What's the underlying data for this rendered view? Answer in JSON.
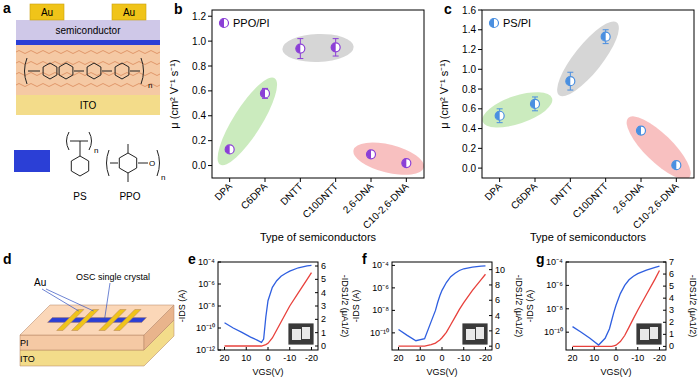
{
  "chart_data": [
    {
      "type": "scatter",
      "title": "b",
      "xlabel": "Type of semiconductors",
      "ylabel": "μ (cm² V⁻¹ s⁻¹)",
      "categories": [
        "DPA",
        "C6DPA",
        "DNTT",
        "C10DNTT",
        "2,6-DNA",
        "C10-2,6-DNA"
      ],
      "series": [
        {
          "name": "PPO/PI",
          "color": "#8b3fd6",
          "marker": "half-circle",
          "values": [
            0.13,
            0.58,
            0.94,
            0.95,
            0.09,
            0.02
          ],
          "errors": [
            0.02,
            0.04,
            0.08,
            0.07,
            0.02,
            0.01
          ]
        }
      ],
      "ylim": [
        -0.1,
        1.25
      ],
      "yticks": [
        {
          "value": 0,
          "label": "0.0"
        },
        {
          "value": 0.2,
          "label": "0.2"
        },
        {
          "value": 0.4,
          "label": "0.4"
        },
        {
          "value": 0.6,
          "label": "0.6"
        },
        {
          "value": 0.8,
          "label": "0.8"
        },
        {
          "value": 1,
          "label": "1.0"
        },
        {
          "value": 1.2,
          "label": "1.2"
        }
      ],
      "legend": "upper left",
      "grid": false
    },
    {
      "type": "scatter",
      "title": "c",
      "xlabel": "Type of semiconductors",
      "ylabel": "μ (cm² V⁻¹ s⁻¹)",
      "categories": [
        "DPA",
        "C6DPA",
        "DNTT",
        "C10DNTT",
        "2,6-DNA",
        "C10-2,6-DNA"
      ],
      "series": [
        {
          "name": "PS/PI",
          "color": "#4a8fe0",
          "marker": "half-circle",
          "values": [
            0.53,
            0.65,
            0.88,
            1.33,
            0.38,
            0.03
          ],
          "errors": [
            0.07,
            0.07,
            0.09,
            0.07,
            0.04,
            0.02
          ]
        }
      ],
      "ylim": [
        -0.1,
        1.6
      ],
      "yticks": [
        {
          "value": 0,
          "label": "0.0"
        },
        {
          "value": 0.2,
          "label": "0.2"
        },
        {
          "value": 0.4,
          "label": "0.4"
        },
        {
          "value": 0.6,
          "label": "0.6"
        },
        {
          "value": 0.8,
          "label": "0.8"
        },
        {
          "value": 1,
          "label": "1.0"
        },
        {
          "value": 1.2,
          "label": "1.2"
        },
        {
          "value": 1.4,
          "label": "1.4"
        },
        {
          "value": 1.6,
          "label": "1.6"
        }
      ],
      "legend": "upper left",
      "grid": false
    },
    {
      "type": "line",
      "title": "e",
      "xlabel": "VGS(V)",
      "ylabel": "-IDS (A)",
      "y2label": "-IDS1/2 (μA1/2)",
      "log": "y",
      "grid": false,
      "x": [
        20,
        16,
        12,
        8,
        5,
        3,
        2,
        1,
        0,
        -2,
        -4,
        -6,
        -8,
        -10,
        -14,
        -18,
        -20
      ],
      "xlim": [
        23,
        -23
      ],
      "xticks": [
        20,
        10,
        0,
        -10,
        -20
      ],
      "ylim": [
        1e-12,
        0.0001
      ],
      "yticks": [
        {
          "value": 1e-12,
          "label": "10⁻¹²"
        },
        {
          "value": 1e-10,
          "label": "10⁻¹⁰"
        },
        {
          "value": 1e-08,
          "label": "10⁻⁸"
        },
        {
          "value": 1e-06,
          "label": "10⁻⁶"
        },
        {
          "value": 0.0001,
          "label": "10⁻⁴"
        }
      ],
      "y2lim": [
        -0.3,
        6.3
      ],
      "y2ticks": [
        0,
        1,
        2,
        3,
        4,
        5,
        6
      ],
      "series": [
        {
          "color": "#2f5fe0",
          "values": [
            3e-10,
            1e-10,
            4e-11,
            1.5e-11,
            8e-12,
            5e-12,
            1e-11,
            1e-09,
            3e-08,
            5e-07,
            2e-06,
            5e-06,
            9e-06,
            1.5e-05,
            3e-05,
            4.5e-05,
            5e-05
          ]
        },
        {
          "color": "#e8413c",
          "axis": "y2",
          "values": [
            0,
            0,
            0,
            0,
            0,
            0,
            0.05,
            0.1,
            0.2,
            0.6,
            1.2,
            1.8,
            2.4,
            3.0,
            4.0,
            5.0,
            5.5
          ]
        }
      ]
    },
    {
      "type": "line",
      "title": "f",
      "xlabel": "VGS(V)",
      "ylabel": "-IDS (A)",
      "y2label": "-IDS1/2 (μA1/2)",
      "log": "y",
      "grid": false,
      "x": [
        20,
        16,
        12,
        8,
        5,
        3,
        2,
        1,
        0,
        -2,
        -4,
        -6,
        -8,
        -10,
        -14,
        -18,
        -20
      ],
      "xlim": [
        23,
        -23
      ],
      "xticks": [
        20,
        10,
        0,
        -10,
        -20
      ],
      "ylim": [
        3e-12,
        0.0002
      ],
      "yticks": [
        {
          "value": 1e-10,
          "label": "10⁻¹⁰"
        },
        {
          "value": 1e-08,
          "label": "10⁻⁸"
        },
        {
          "value": 1e-06,
          "label": "10⁻⁶"
        },
        {
          "value": 0.0001,
          "label": "10⁻⁴"
        }
      ],
      "y2lim": [
        -0.5,
        11
      ],
      "y2ticks": [
        0,
        2,
        4,
        6,
        8,
        10
      ],
      "series": [
        {
          "color": "#2f5fe0",
          "values": [
            2e-10,
            6e-11,
            2e-11,
            3e-11,
            1e-09,
            1e-08,
            5e-08,
            2e-07,
            6e-07,
            3e-06,
            1e-05,
            2e-05,
            3.5e-05,
            5e-05,
            7e-05,
            8.5e-05,
            9e-05
          ]
        },
        {
          "color": "#e8413c",
          "axis": "y2",
          "values": [
            0,
            0,
            0,
            0,
            0.2,
            0.4,
            0.6,
            0.8,
            1.1,
            1.8,
            2.8,
            3.8,
            4.8,
            5.7,
            7.3,
            8.7,
            9.4
          ]
        }
      ]
    },
    {
      "type": "line",
      "title": "g",
      "xlabel": "VGS(V)",
      "ylabel": "-IDS (A)",
      "y2label": "-IDS1/2 (μA1/2)",
      "log": "y",
      "grid": false,
      "x": [
        20,
        16,
        12,
        8,
        5,
        3,
        2,
        1,
        0,
        -2,
        -4,
        -6,
        -8,
        -10,
        -14,
        -18,
        -20
      ],
      "xlim": [
        23,
        -23
      ],
      "xticks": [
        20,
        10,
        0,
        -10,
        -20
      ],
      "ylim": [
        3e-12,
        0.0001
      ],
      "yticks": [
        {
          "value": 1e-10,
          "label": "10⁻¹⁰"
        },
        {
          "value": 1e-08,
          "label": "10⁻⁸"
        },
        {
          "value": 1e-06,
          "label": "10⁻⁶"
        },
        {
          "value": 0.0001,
          "label": "10⁻⁴"
        }
      ],
      "y2lim": [
        -0.3,
        7
      ],
      "y2ticks": [
        0,
        1,
        2,
        3,
        4,
        5,
        6,
        7
      ],
      "series": [
        {
          "color": "#2f5fe0",
          "values": [
            3e-10,
            1e-10,
            3e-11,
            8e-12,
            3e-11,
            2e-10,
            1e-09,
            5e-09,
            2e-08,
            2e-07,
            1e-06,
            3e-06,
            6e-06,
            1e-05,
            2e-05,
            3.5e-05,
            4.5e-05
          ]
        },
        {
          "color": "#e8413c",
          "axis": "y2",
          "values": [
            0,
            0,
            0,
            0,
            0,
            0,
            0,
            0.05,
            0.1,
            0.4,
            0.9,
            1.6,
            2.3,
            3.0,
            4.3,
            5.6,
            6.3
          ]
        }
      ]
    }
  ],
  "diagrams": {
    "a": {
      "title": "a",
      "electrode": "Au",
      "layers": [
        "semiconductor",
        "ITO"
      ],
      "polymers": [
        "PS",
        "PPO"
      ],
      "repeat": "n"
    },
    "d": {
      "title": "d",
      "electrode": "Au",
      "crystal": "OSC single crystal",
      "layers": [
        "PI",
        "ITO"
      ]
    }
  }
}
